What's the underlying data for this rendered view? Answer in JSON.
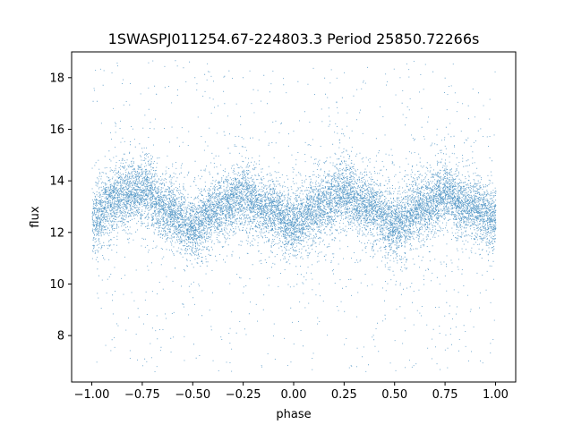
{
  "chart_data": {
    "type": "scatter",
    "title": "1SWASPJ011254.67-224803.3 Period 25850.72266s",
    "xlabel": "phase",
    "ylabel": "flux",
    "xlim": [
      -1.1,
      1.1
    ],
    "ylim": [
      6.2,
      19.0
    ],
    "x_ticks": [
      -1.0,
      -0.75,
      -0.5,
      -0.25,
      0.0,
      0.25,
      0.5,
      0.75,
      1.0
    ],
    "x_tick_labels": [
      "−1.00",
      "−0.75",
      "−0.50",
      "−0.25",
      "0.00",
      "0.25",
      "0.50",
      "0.75",
      "1.00"
    ],
    "y_ticks": [
      8,
      10,
      12,
      14,
      16,
      18
    ],
    "y_tick_labels": [
      "8",
      "10",
      "12",
      "14",
      "16",
      "18"
    ],
    "grid": false,
    "legend": "none",
    "marker_color": "#1f77b4",
    "phase_range": [
      -1.0,
      1.0
    ],
    "flux_range": [
      6.6,
      18.7
    ],
    "curve_samples": {
      "phase": [
        -1.0,
        -0.875,
        -0.75,
        -0.625,
        -0.5,
        -0.375,
        -0.25,
        -0.125,
        0.0,
        0.125,
        0.25,
        0.375,
        0.5,
        0.625,
        0.75,
        0.875,
        1.0
      ],
      "flux": [
        12.5,
        13.4,
        13.7,
        12.9,
        12.2,
        12.9,
        13.4,
        12.9,
        12.3,
        13.0,
        13.6,
        13.0,
        12.3,
        12.9,
        13.5,
        13.0,
        12.5
      ]
    }
  }
}
